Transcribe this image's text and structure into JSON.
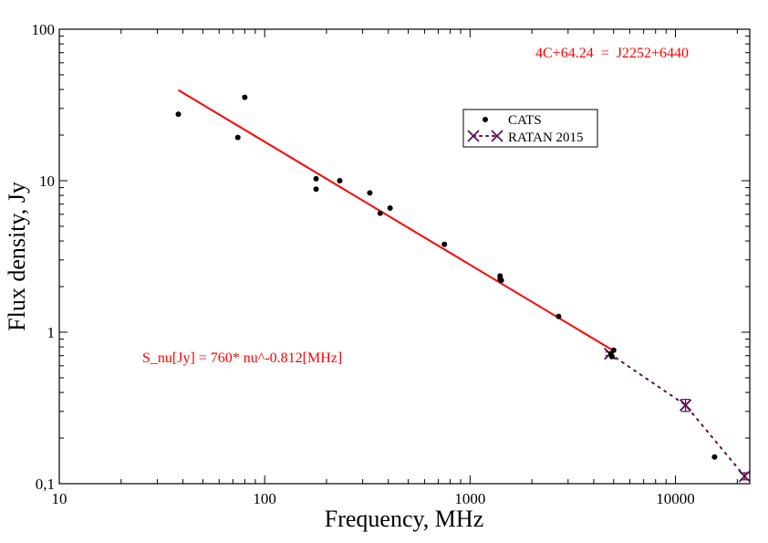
{
  "chart_data": {
    "type": "scatter",
    "title": "",
    "xlabel": "Frequency, MHz",
    "ylabel": "Flux density, Jy",
    "xscale": "log",
    "yscale": "log",
    "xlim": [
      10,
      23000
    ],
    "ylim": [
      0.1,
      100
    ],
    "x_ticks": [
      {
        "value": 10,
        "label": "10"
      },
      {
        "value": 100,
        "label": "100"
      },
      {
        "value": 1000,
        "label": "1000"
      },
      {
        "value": 10000,
        "label": "10000"
      }
    ],
    "y_ticks": [
      {
        "value": 0.1,
        "label": "0,1"
      },
      {
        "value": 1,
        "label": "1"
      },
      {
        "value": 10,
        "label": "10"
      },
      {
        "value": 100,
        "label": "100"
      }
    ],
    "grid": false,
    "legend_position": "top-center",
    "colors": {
      "cats": "#000000",
      "ratan": "#5a0f4f",
      "fit": "#ff0000"
    },
    "series": [
      {
        "name": "CATS",
        "marker": "dot",
        "points": [
          {
            "x": 38,
            "y": 27.5
          },
          {
            "x": 74,
            "y": 19.3
          },
          {
            "x": 80,
            "y": 35.5
          },
          {
            "x": 178,
            "y": 8.8
          },
          {
            "x": 178,
            "y": 10.3
          },
          {
            "x": 232,
            "y": 10.0
          },
          {
            "x": 325,
            "y": 8.3
          },
          {
            "x": 365,
            "y": 6.1
          },
          {
            "x": 408,
            "y": 6.6
          },
          {
            "x": 750,
            "y": 3.8
          },
          {
            "x": 1400,
            "y": 2.35
          },
          {
            "x": 1400,
            "y": 2.25
          },
          {
            "x": 1420,
            "y": 2.2
          },
          {
            "x": 2700,
            "y": 1.27
          },
          {
            "x": 4850,
            "y": 0.72
          },
          {
            "x": 4900,
            "y": 0.69
          },
          {
            "x": 5000,
            "y": 0.76
          },
          {
            "x": 15500,
            "y": 0.15
          }
        ]
      },
      {
        "name": "RATAN 2015",
        "marker": "x",
        "line": "dotted",
        "points": [
          {
            "x": 4800,
            "y": 0.72,
            "err": 0.02
          },
          {
            "x": 11200,
            "y": 0.33,
            "err": 0.03
          },
          {
            "x": 21700,
            "y": 0.112,
            "err": 0.006
          }
        ]
      }
    ],
    "fit": {
      "name": "S_nu[Jy] = 760* nu^-0.812[MHz]",
      "amplitude": 760,
      "index": -0.812,
      "x_range": [
        38,
        4900
      ]
    },
    "annotations": [
      {
        "id": "source",
        "text": "4C+64.24  =  J2252+6440"
      },
      {
        "id": "formula",
        "text": "S_nu[Jy] = 760* nu^-0.812[MHz]"
      }
    ]
  }
}
